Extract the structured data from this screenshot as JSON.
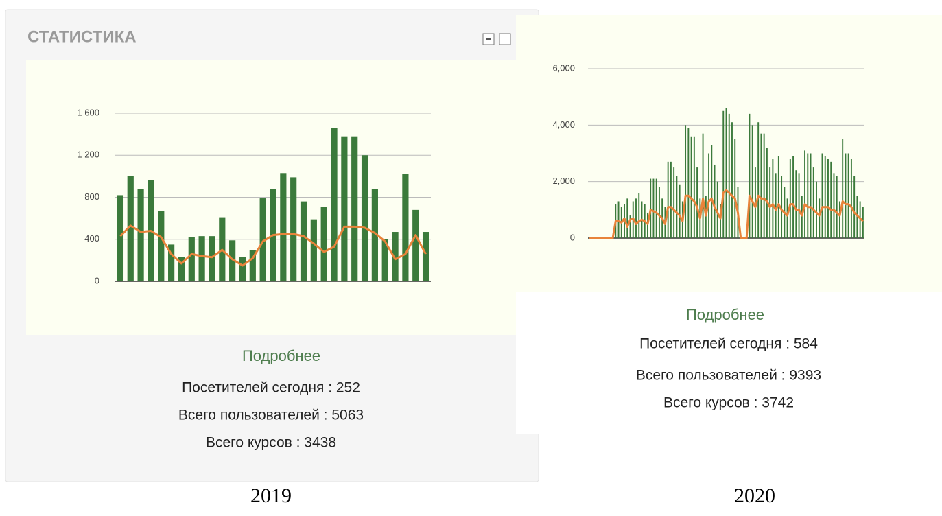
{
  "chart_data": [
    {
      "type": "bar",
      "ylim": [
        0,
        1600
      ],
      "yticks": [
        0,
        400,
        800,
        {
          "value": 1200,
          "label": "1 200"
        },
        {
          "value": 1600,
          "label": "1 600"
        }
      ],
      "grid": true,
      "series": [
        {
          "type": "bar",
          "color": "#3b7a3b",
          "values": [
            820,
            1000,
            880,
            960,
            670,
            350,
            230,
            420,
            430,
            430,
            610,
            390,
            230,
            300,
            790,
            880,
            1030,
            990,
            760,
            590,
            710,
            1460,
            1380,
            1380,
            1200,
            880,
            400,
            470,
            1020,
            680,
            470
          ]
        },
        {
          "type": "line",
          "color": "#e8833a",
          "values": [
            430,
            530,
            470,
            480,
            420,
            260,
            170,
            260,
            240,
            230,
            300,
            210,
            150,
            220,
            380,
            440,
            450,
            450,
            430,
            360,
            280,
            330,
            520,
            520,
            510,
            460,
            380,
            210,
            260,
            440,
            260
          ]
        }
      ]
    },
    {
      "type": "bar",
      "ylim": [
        0,
        6000
      ],
      "yticks": [
        0,
        {
          "value": 2000,
          "label": "2,000"
        },
        {
          "value": 4000,
          "label": "4,000"
        },
        {
          "value": 6000,
          "label": "6,000"
        }
      ],
      "grid": true,
      "series": [
        {
          "type": "bar",
          "color": "#3b7a3b",
          "values": [
            0,
            0,
            0,
            0,
            0,
            0,
            0,
            0,
            0,
            1200,
            1300,
            1100,
            1200,
            1400,
            800,
            1300,
            1400,
            1600,
            1300,
            1200,
            900,
            2100,
            2100,
            2100,
            1800,
            1400,
            1100,
            2700,
            2700,
            2500,
            2200,
            1900,
            1300,
            4000,
            3900,
            3600,
            3600,
            2500,
            1400,
            3700,
            1500,
            3000,
            3300,
            2600,
            2000,
            1200,
            4500,
            4600,
            4400,
            4100,
            3500,
            1800,
            0,
            0,
            0,
            4400,
            4000,
            2500,
            4100,
            3700,
            3700,
            3200,
            2500,
            2800,
            2300,
            2900,
            2200,
            1800,
            1400,
            2800,
            2900,
            2400,
            2300,
            1500,
            3100,
            3000,
            3000,
            2500,
            2000,
            1400,
            3000,
            2900,
            2800,
            2700,
            2300,
            2200,
            1300,
            3500,
            3000,
            3000,
            2800,
            2200,
            1500,
            1300,
            1100
          ]
        },
        {
          "type": "line",
          "color": "#e8833a",
          "values": [
            0,
            0,
            0,
            0,
            0,
            0,
            0,
            0,
            0,
            600,
            600,
            550,
            700,
            400,
            650,
            700,
            500,
            600,
            650,
            600,
            500,
            1000,
            950,
            900,
            800,
            700,
            500,
            1100,
            1100,
            1000,
            900,
            800,
            600,
            1500,
            1500,
            1400,
            1300,
            1100,
            700,
            1400,
            800,
            1300,
            1400,
            1100,
            900,
            700,
            1600,
            1700,
            1600,
            1500,
            1400,
            900,
            0,
            0,
            0,
            1500,
            1300,
            1100,
            1500,
            1400,
            1400,
            1300,
            1100,
            1200,
            1000,
            1200,
            1000,
            900,
            800,
            1200,
            1200,
            1000,
            1000,
            800,
            1200,
            1100,
            1100,
            1000,
            900,
            800,
            1100,
            1100,
            1100,
            1000,
            1000,
            900,
            800,
            1300,
            1200,
            1200,
            1100,
            900,
            800,
            700,
            600
          ]
        }
      ]
    }
  ],
  "panels": [
    {
      "title": "СТАТИСТИКА",
      "link": "Подробнее",
      "stats": [
        "Посетителей сегодня : 252",
        "Всего пользователей : 5063",
        "Всего курсов : 3438"
      ],
      "caption": "2019"
    },
    {
      "link": "Подробнее",
      "stats": [
        "Посетителей сегодня : 584",
        "Всего пользователей : 9393",
        "Всего курсов : 3742"
      ],
      "caption": "2020"
    }
  ]
}
